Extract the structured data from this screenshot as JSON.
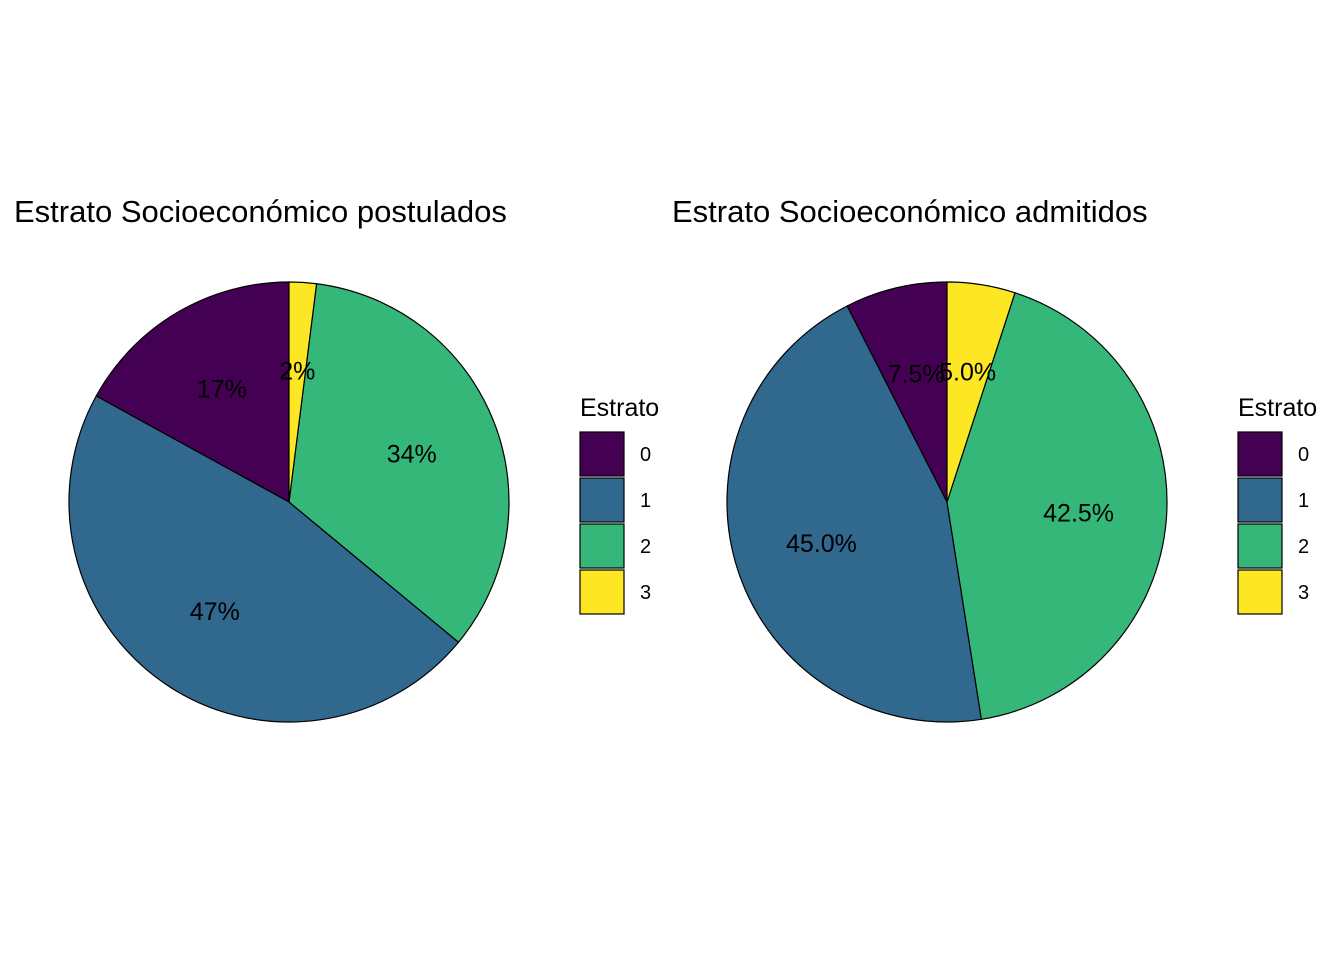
{
  "chart_data": [
    {
      "type": "pie",
      "title": "Estrato Socioeconómico postulados",
      "categories": [
        "0",
        "1",
        "2",
        "3"
      ],
      "values": [
        17,
        47,
        34,
        2
      ],
      "labels": [
        "17%",
        "47%",
        "34%",
        "2%"
      ],
      "colors": [
        "#440154",
        "#31688E",
        "#35B779",
        "#FDE725"
      ],
      "legend": {
        "title": "Estrato",
        "placement": "right",
        "items": [
          "0",
          "1",
          "2",
          "3"
        ]
      },
      "direction": "counterclockwise",
      "start": "top"
    },
    {
      "type": "pie",
      "title": "Estrato Socioeconómico admitidos",
      "categories": [
        "0",
        "1",
        "2",
        "3"
      ],
      "values": [
        7.5,
        45.0,
        42.5,
        5.0
      ],
      "labels": [
        "7.5%",
        "45.0%",
        "42.5%",
        "5.0%"
      ],
      "colors": [
        "#440154",
        "#31688E",
        "#35B779",
        "#FDE725"
      ],
      "legend": {
        "title": "Estrato",
        "placement": "right",
        "items": [
          "0",
          "1",
          "2",
          "3"
        ]
      },
      "direction": "counterclockwise",
      "start": "top"
    }
  ]
}
